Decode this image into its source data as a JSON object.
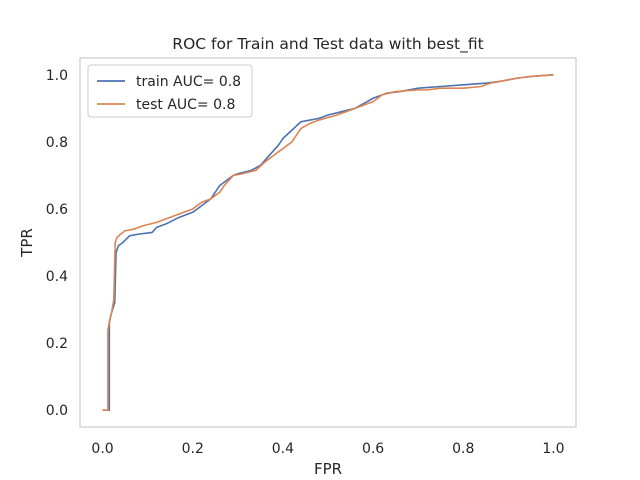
{
  "chart_data": {
    "type": "line",
    "title": "ROC for Train and Test data with best_fit",
    "xlabel": "FPR",
    "ylabel": "TPR",
    "xlim": [
      -0.05,
      1.05
    ],
    "ylim": [
      -0.05,
      1.05
    ],
    "xticks": [
      0.0,
      0.2,
      0.4,
      0.6,
      0.8,
      1.0
    ],
    "xtick_labels": [
      "0.0",
      "0.2",
      "0.4",
      "0.6",
      "0.8",
      "1.0"
    ],
    "yticks": [
      0.0,
      0.2,
      0.4,
      0.6,
      0.8,
      1.0
    ],
    "ytick_labels": [
      "0.0",
      "0.2",
      "0.4",
      "0.6",
      "0.8",
      "1.0"
    ],
    "grid": false,
    "legend_position": "upper-left",
    "series": [
      {
        "name": "train AUC= 0.8",
        "color": "#4c72b0",
        "x": [
          0.0,
          0.015,
          0.015,
          0.018,
          0.022,
          0.027,
          0.03,
          0.035,
          0.045,
          0.06,
          0.08,
          0.11,
          0.12,
          0.14,
          0.17,
          0.2,
          0.22,
          0.24,
          0.25,
          0.26,
          0.27,
          0.28,
          0.29,
          0.3,
          0.33,
          0.35,
          0.37,
          0.39,
          0.4,
          0.42,
          0.44,
          0.46,
          0.48,
          0.5,
          0.53,
          0.56,
          0.58,
          0.6,
          0.63,
          0.66,
          0.7,
          0.75,
          0.8,
          0.85,
          0.88,
          0.9,
          0.92,
          0.95,
          0.98,
          1.0
        ],
        "y": [
          0.0,
          0.0,
          0.26,
          0.28,
          0.3,
          0.32,
          0.47,
          0.49,
          0.5,
          0.52,
          0.525,
          0.53,
          0.545,
          0.555,
          0.575,
          0.59,
          0.61,
          0.63,
          0.65,
          0.67,
          0.68,
          0.69,
          0.7,
          0.705,
          0.715,
          0.73,
          0.76,
          0.79,
          0.81,
          0.835,
          0.86,
          0.865,
          0.87,
          0.88,
          0.89,
          0.9,
          0.915,
          0.93,
          0.945,
          0.95,
          0.96,
          0.965,
          0.97,
          0.975,
          0.98,
          0.985,
          0.99,
          0.995,
          0.998,
          1.0
        ]
      },
      {
        "name": "test AUC= 0.8",
        "color": "#dd8452",
        "x": [
          0.0,
          0.012,
          0.012,
          0.016,
          0.02,
          0.025,
          0.028,
          0.032,
          0.04,
          0.05,
          0.07,
          0.09,
          0.12,
          0.14,
          0.16,
          0.2,
          0.22,
          0.24,
          0.26,
          0.27,
          0.29,
          0.31,
          0.34,
          0.36,
          0.38,
          0.4,
          0.42,
          0.44,
          0.46,
          0.48,
          0.52,
          0.56,
          0.6,
          0.62,
          0.65,
          0.7,
          0.72,
          0.75,
          0.8,
          0.84,
          0.86,
          0.9,
          0.92,
          0.95,
          1.0
        ],
        "y": [
          0.0,
          0.0,
          0.24,
          0.27,
          0.29,
          0.33,
          0.5,
          0.515,
          0.525,
          0.535,
          0.54,
          0.55,
          0.56,
          0.57,
          0.58,
          0.6,
          0.62,
          0.63,
          0.65,
          0.67,
          0.7,
          0.705,
          0.715,
          0.74,
          0.76,
          0.78,
          0.8,
          0.84,
          0.855,
          0.865,
          0.88,
          0.9,
          0.92,
          0.94,
          0.95,
          0.955,
          0.955,
          0.96,
          0.96,
          0.965,
          0.975,
          0.985,
          0.99,
          0.995,
          1.0
        ]
      }
    ]
  }
}
